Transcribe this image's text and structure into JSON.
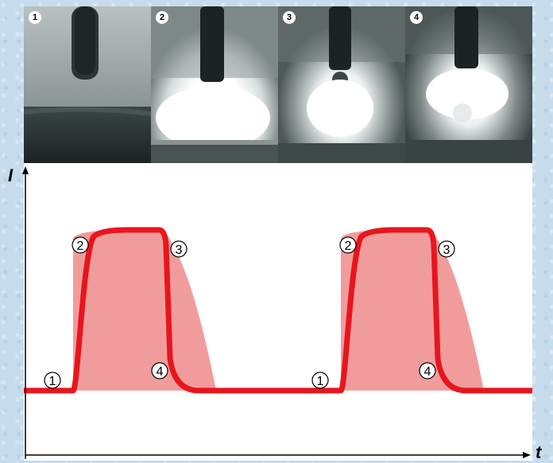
{
  "photos": [
    {
      "label": "1",
      "state": "electrode-before-arc"
    },
    {
      "label": "2",
      "state": "peak-current-arc"
    },
    {
      "label": "3",
      "state": "droplet-detachment"
    },
    {
      "label": "4",
      "state": "background-current-arc"
    }
  ],
  "axes": {
    "y_label": "I",
    "x_label": "t"
  },
  "colors": {
    "curve": "#e8151d",
    "band": "#ee8b8b",
    "plot_bg": "#ffffff",
    "axis": "#000000"
  },
  "markers": [
    {
      "label": "1",
      "cycle": 1,
      "phase": "base"
    },
    {
      "label": "2",
      "cycle": 1,
      "phase": "rise"
    },
    {
      "label": "3",
      "cycle": 1,
      "phase": "peak-end"
    },
    {
      "label": "4",
      "cycle": 1,
      "phase": "fall"
    },
    {
      "label": "1",
      "cycle": 2,
      "phase": "base"
    },
    {
      "label": "2",
      "cycle": 2,
      "phase": "rise"
    },
    {
      "label": "3",
      "cycle": 2,
      "phase": "peak-end"
    },
    {
      "label": "4",
      "cycle": 2,
      "phase": "fall"
    }
  ]
}
